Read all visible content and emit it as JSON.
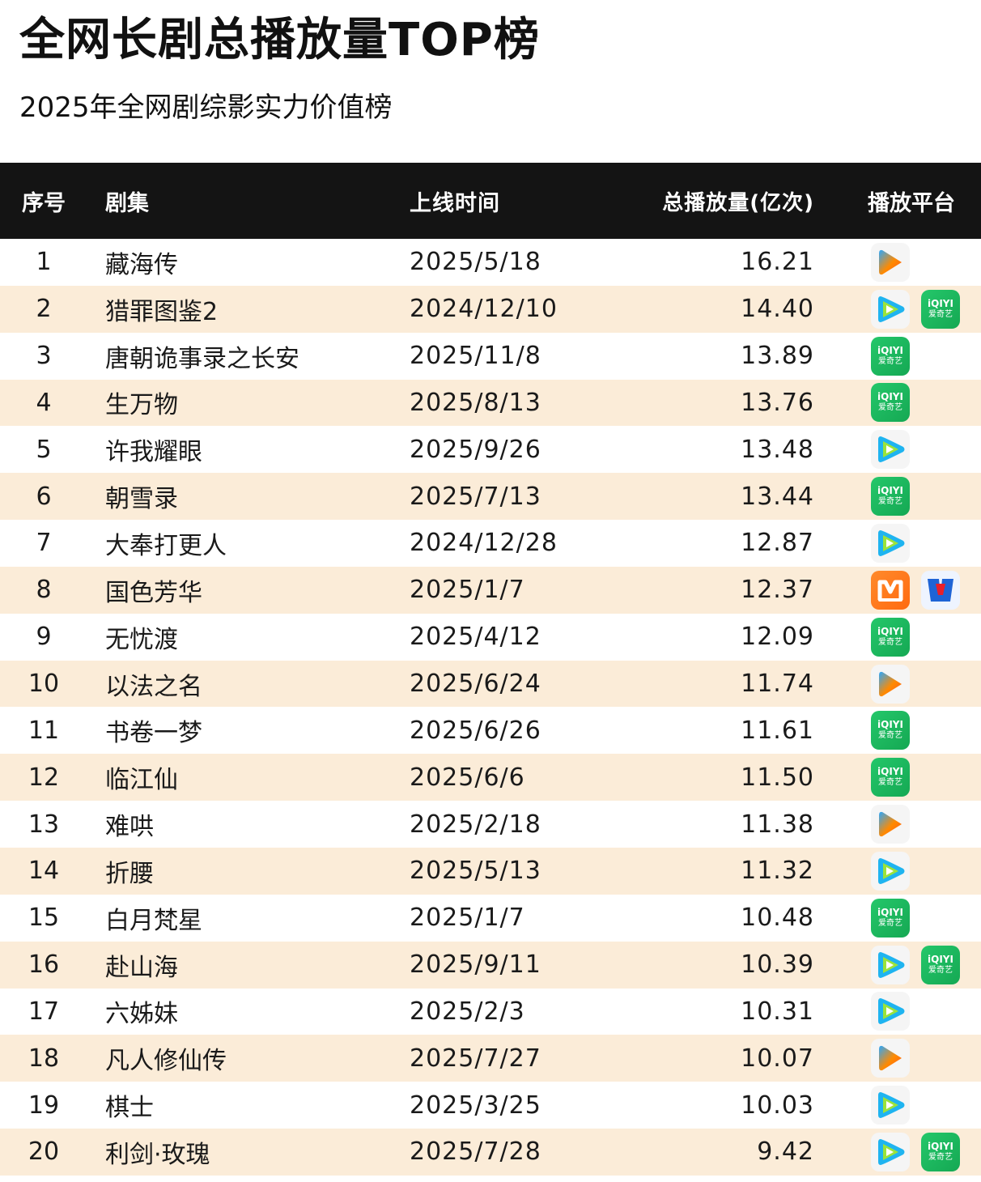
{
  "title": "全网长剧总播放量TOP榜",
  "subtitle": "2025年全网剧综影实力价值榜",
  "colors": {
    "header_bg": "#141414",
    "alt_row": "#fbecd8",
    "iqiyi": "#1cb85f",
    "mgtv": "#ff7a1a"
  },
  "icons": {
    "youku": "youku-logo-icon",
    "tencent": "tencent-video-logo-icon",
    "iqiyi": "iqiyi-logo-icon",
    "mgtv": "mgtv-logo-icon",
    "cctv": "cctv-logo-icon"
  },
  "logo_text": {
    "iqiyi_line1": "iQIYI",
    "iqiyi_line2": "爱奇艺"
  },
  "headers": {
    "no": "序号",
    "name": "剧集",
    "date": "上线时间",
    "plays": "总播放量(亿次)",
    "platform": "播放平台"
  },
  "rows": [
    {
      "no": "1",
      "name": "藏海传",
      "date": "2025/5/18",
      "plays": "16.21",
      "platforms": [
        "youku"
      ]
    },
    {
      "no": "2",
      "name": "猎罪图鉴2",
      "date": "2024/12/10",
      "plays": "14.40",
      "platforms": [
        "tencent",
        "iqiyi"
      ]
    },
    {
      "no": "3",
      "name": "唐朝诡事录之长安",
      "date": "2025/11/8",
      "plays": "13.89",
      "platforms": [
        "iqiyi"
      ]
    },
    {
      "no": "4",
      "name": "生万物",
      "date": "2025/8/13",
      "plays": "13.76",
      "platforms": [
        "iqiyi"
      ]
    },
    {
      "no": "5",
      "name": "许我耀眼",
      "date": "2025/9/26",
      "plays": "13.48",
      "platforms": [
        "tencent"
      ]
    },
    {
      "no": "6",
      "name": "朝雪录",
      "date": "2025/7/13",
      "plays": "13.44",
      "platforms": [
        "iqiyi"
      ]
    },
    {
      "no": "7",
      "name": "大奉打更人",
      "date": "2024/12/28",
      "plays": "12.87",
      "platforms": [
        "tencent"
      ]
    },
    {
      "no": "8",
      "name": "国色芳华",
      "date": "2025/1/7",
      "plays": "12.37",
      "platforms": [
        "mgtv",
        "cctv"
      ]
    },
    {
      "no": "9",
      "name": "无忧渡",
      "date": "2025/4/12",
      "plays": "12.09",
      "platforms": [
        "iqiyi"
      ]
    },
    {
      "no": "10",
      "name": "以法之名",
      "date": "2025/6/24",
      "plays": "11.74",
      "platforms": [
        "youku"
      ]
    },
    {
      "no": "11",
      "name": "书卷一梦",
      "date": "2025/6/26",
      "plays": "11.61",
      "platforms": [
        "iqiyi"
      ]
    },
    {
      "no": "12",
      "name": "临江仙",
      "date": "2025/6/6",
      "plays": "11.50",
      "platforms": [
        "iqiyi"
      ]
    },
    {
      "no": "13",
      "name": "难哄",
      "date": "2025/2/18",
      "plays": "11.38",
      "platforms": [
        "youku"
      ]
    },
    {
      "no": "14",
      "name": "折腰",
      "date": "2025/5/13",
      "plays": "11.32",
      "platforms": [
        "tencent"
      ]
    },
    {
      "no": "15",
      "name": "白月梵星",
      "date": "2025/1/7",
      "plays": "10.48",
      "platforms": [
        "iqiyi"
      ]
    },
    {
      "no": "16",
      "name": "赴山海",
      "date": "2025/9/11",
      "plays": "10.39",
      "platforms": [
        "tencent",
        "iqiyi"
      ]
    },
    {
      "no": "17",
      "name": "六姊妹",
      "date": "2025/2/3",
      "plays": "10.31",
      "platforms": [
        "tencent"
      ]
    },
    {
      "no": "18",
      "name": "凡人修仙传",
      "date": "2025/7/27",
      "plays": "10.07",
      "platforms": [
        "youku"
      ]
    },
    {
      "no": "19",
      "name": "棋士",
      "date": "2025/3/25",
      "plays": "10.03",
      "platforms": [
        "tencent"
      ]
    },
    {
      "no": "20",
      "name": "利剑·玫瑰",
      "date": "2025/7/28",
      "plays": "9.42",
      "platforms": [
        "tencent",
        "iqiyi"
      ]
    }
  ]
}
